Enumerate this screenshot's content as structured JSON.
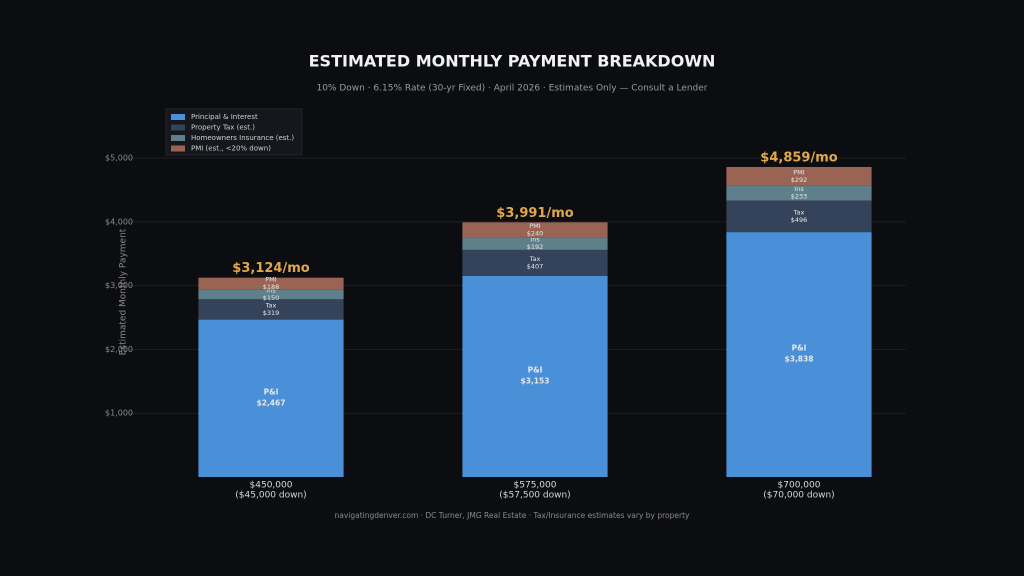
{
  "chart_data": {
    "type": "stacked_bar",
    "title": "ESTIMATED MONTHLY PAYMENT BREAKDOWN",
    "subtitle": "10% Down  ·  6.15% Rate (30-yr Fixed)  ·  April 2026  ·  Estimates Only — Consult a Lender",
    "y_label": "Estimated Monthly Payment",
    "footer": "navigatingdenver.com  ·  DC Turner, JMG Real Estate  ·  Tax/Insurance estimates vary by property",
    "categories": [
      "$450,000",
      "$575,000",
      "$700,000"
    ],
    "category_sublabels": [
      "($45,000 down)",
      "($57,500 down)",
      "($70,000 down)"
    ],
    "series": [
      {
        "name": "Principal & Interest",
        "short_name": "P&I",
        "color": "#4a90d9",
        "values": [
          2467,
          3153,
          3838
        ],
        "value_labels": [
          "$2,467",
          "$3,153",
          "$3,838"
        ]
      },
      {
        "name": "Property Tax (est.)",
        "short_name": "Tax",
        "color": "#34435a",
        "values": [
          319,
          407,
          496
        ],
        "value_labels": [
          "$319",
          "$407",
          "$496"
        ]
      },
      {
        "name": "Homeowners Insurance (est.)",
        "short_name": "Ins",
        "color": "#5f7f8a",
        "values": [
          150,
          192,
          233
        ],
        "value_labels": [
          "$150",
          "$192",
          "$233"
        ]
      },
      {
        "name": "PMI (est., <20% down)",
        "short_name": "PMI",
        "color": "#9a6455",
        "values": [
          188,
          240,
          292
        ],
        "value_labels": [
          "$188",
          "$240",
          "$292"
        ]
      }
    ],
    "totals": [
      3124,
      3991,
      4859
    ],
    "total_labels": [
      "$3,124/mo",
      "$3,991/mo",
      "$4,859/mo"
    ],
    "ylim": [
      0,
      5100
    ],
    "yticks": [
      {
        "value": 1000,
        "label": "$1,000"
      },
      {
        "value": 2000,
        "label": "$2,000"
      },
      {
        "value": 3000,
        "label": "$3,000"
      },
      {
        "value": 4000,
        "label": "$4,000"
      },
      {
        "value": 5000,
        "label": "$5,000"
      }
    ],
    "grid": true,
    "legend": "upper left"
  }
}
